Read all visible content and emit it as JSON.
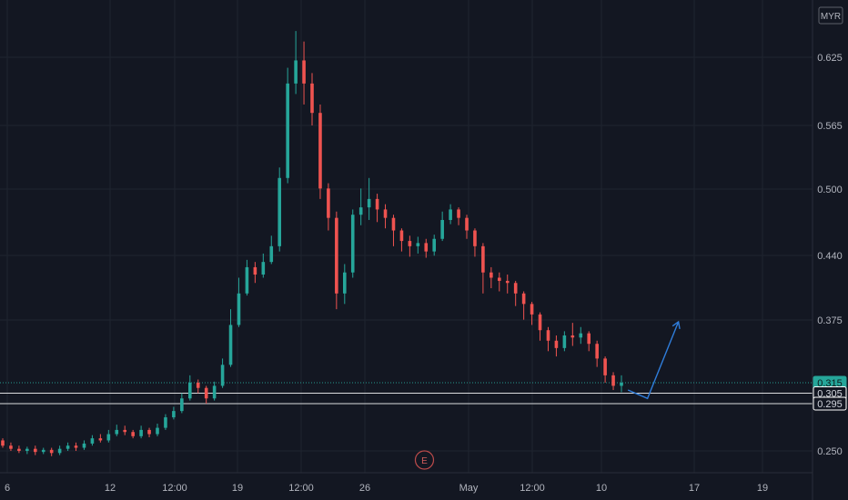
{
  "chart_data": {
    "type": "candlestick",
    "currency": "MYR",
    "x_ticks": [
      "6",
      "12",
      "12:00",
      "19",
      "12:00",
      "26",
      "May",
      "12:00",
      "10",
      "17",
      "19"
    ],
    "y_ticks": [
      "0.625",
      "0.565",
      "0.500",
      "0.440",
      "0.375",
      "0.250"
    ],
    "ylim": [
      0.23,
      0.67
    ],
    "xlim": [
      0,
      100
    ],
    "price_levels": [
      {
        "label": "0.315",
        "value": 0.315,
        "style": "dotted",
        "color": "#26a69a"
      },
      {
        "label": "0.305",
        "value": 0.305,
        "style": "solid",
        "color": "#ffffff"
      },
      {
        "label": "0.295",
        "value": 0.295,
        "style": "solid",
        "color": "#ffffff"
      }
    ],
    "earnings_marker": {
      "label": "E",
      "x": 51.8
    },
    "projection": [
      {
        "x": 76.8,
        "y": 0.308
      },
      {
        "x": 79.2,
        "y": 0.3
      },
      {
        "x": 83.0,
        "y": 0.373
      }
    ],
    "candles": [
      [
        0.0,
        0.26,
        0.255,
        0.262,
        0.253
      ],
      [
        1.0,
        0.255,
        0.252,
        0.258,
        0.25
      ],
      [
        2.0,
        0.252,
        0.25,
        0.255,
        0.248
      ],
      [
        3.0,
        0.25,
        0.252,
        0.254,
        0.247
      ],
      [
        4.0,
        0.252,
        0.249,
        0.255,
        0.246
      ],
      [
        5.0,
        0.249,
        0.251,
        0.253,
        0.247
      ],
      [
        6.0,
        0.251,
        0.248,
        0.253,
        0.245
      ],
      [
        7.0,
        0.248,
        0.252,
        0.255,
        0.246
      ],
      [
        8.0,
        0.252,
        0.255,
        0.258,
        0.25
      ],
      [
        9.0,
        0.255,
        0.253,
        0.258,
        0.25
      ],
      [
        10.0,
        0.253,
        0.257,
        0.26,
        0.251
      ],
      [
        11.0,
        0.257,
        0.262,
        0.265,
        0.255
      ],
      [
        12.0,
        0.262,
        0.26,
        0.266,
        0.258
      ],
      [
        13.0,
        0.26,
        0.266,
        0.27,
        0.258
      ],
      [
        14.0,
        0.266,
        0.27,
        0.275,
        0.264
      ],
      [
        15.0,
        0.27,
        0.268,
        0.274,
        0.265
      ],
      [
        16.0,
        0.268,
        0.264,
        0.27,
        0.262
      ],
      [
        17.0,
        0.264,
        0.27,
        0.274,
        0.262
      ],
      [
        18.0,
        0.27,
        0.266,
        0.272,
        0.263
      ],
      [
        19.0,
        0.266,
        0.272,
        0.276,
        0.264
      ],
      [
        20.0,
        0.272,
        0.282,
        0.285,
        0.27
      ],
      [
        21.0,
        0.282,
        0.288,
        0.292,
        0.28
      ],
      [
        22.0,
        0.288,
        0.3,
        0.305,
        0.286
      ],
      [
        23.0,
        0.3,
        0.315,
        0.322,
        0.298
      ],
      [
        24.0,
        0.315,
        0.31,
        0.318,
        0.305
      ],
      [
        25.0,
        0.31,
        0.3,
        0.312,
        0.295
      ],
      [
        26.0,
        0.3,
        0.312,
        0.316,
        0.298
      ],
      [
        27.0,
        0.312,
        0.332,
        0.338,
        0.31
      ],
      [
        28.0,
        0.332,
        0.37,
        0.385,
        0.33
      ],
      [
        29.0,
        0.37,
        0.4,
        0.415,
        0.368
      ],
      [
        30.0,
        0.4,
        0.425,
        0.432,
        0.398
      ],
      [
        31.0,
        0.425,
        0.418,
        0.43,
        0.41
      ],
      [
        32.0,
        0.418,
        0.43,
        0.438,
        0.415
      ],
      [
        33.0,
        0.43,
        0.445,
        0.455,
        0.428
      ],
      [
        34.0,
        0.445,
        0.51,
        0.52,
        0.44
      ],
      [
        35.0,
        0.51,
        0.6,
        0.615,
        0.505
      ],
      [
        36.0,
        0.6,
        0.622,
        0.65,
        0.59
      ],
      [
        37.0,
        0.622,
        0.6,
        0.64,
        0.58
      ],
      [
        38.0,
        0.6,
        0.572,
        0.61,
        0.56
      ],
      [
        39.0,
        0.572,
        0.5,
        0.58,
        0.49
      ],
      [
        40.0,
        0.5,
        0.472,
        0.505,
        0.46
      ],
      [
        41.0,
        0.472,
        0.4,
        0.478,
        0.385
      ],
      [
        42.0,
        0.4,
        0.42,
        0.428,
        0.39
      ],
      [
        43.0,
        0.42,
        0.475,
        0.48,
        0.415
      ],
      [
        44.0,
        0.475,
        0.482,
        0.5,
        0.465
      ],
      [
        45.0,
        0.482,
        0.49,
        0.51,
        0.47
      ],
      [
        46.0,
        0.49,
        0.48,
        0.495,
        0.468
      ],
      [
        47.0,
        0.48,
        0.472,
        0.485,
        0.462
      ],
      [
        48.0,
        0.472,
        0.46,
        0.475,
        0.445
      ],
      [
        49.0,
        0.46,
        0.45,
        0.462,
        0.44
      ],
      [
        50.0,
        0.45,
        0.445,
        0.455,
        0.435
      ],
      [
        51.0,
        0.445,
        0.448,
        0.454,
        0.438
      ],
      [
        52.0,
        0.448,
        0.44,
        0.452,
        0.434
      ],
      [
        53.0,
        0.44,
        0.452,
        0.456,
        0.436
      ],
      [
        54.0,
        0.452,
        0.47,
        0.478,
        0.45
      ],
      [
        55.0,
        0.47,
        0.48,
        0.485,
        0.466
      ],
      [
        56.0,
        0.48,
        0.472,
        0.482,
        0.465
      ],
      [
        57.0,
        0.472,
        0.46,
        0.475,
        0.452
      ],
      [
        58.0,
        0.46,
        0.445,
        0.462,
        0.435
      ],
      [
        59.0,
        0.445,
        0.42,
        0.448,
        0.4
      ],
      [
        60.0,
        0.42,
        0.415,
        0.425,
        0.405
      ],
      [
        61.0,
        0.415,
        0.412,
        0.42,
        0.402
      ],
      [
        62.0,
        0.412,
        0.41,
        0.418,
        0.4
      ],
      [
        63.0,
        0.41,
        0.4,
        0.412,
        0.388
      ],
      [
        64.0,
        0.4,
        0.39,
        0.402,
        0.375
      ],
      [
        65.0,
        0.39,
        0.38,
        0.392,
        0.37
      ],
      [
        66.0,
        0.38,
        0.365,
        0.382,
        0.355
      ],
      [
        67.0,
        0.365,
        0.355,
        0.368,
        0.345
      ],
      [
        68.0,
        0.355,
        0.348,
        0.36,
        0.34
      ],
      [
        69.0,
        0.348,
        0.36,
        0.364,
        0.345
      ],
      [
        70.0,
        0.36,
        0.358,
        0.372,
        0.35
      ],
      [
        71.0,
        0.358,
        0.362,
        0.368,
        0.352
      ],
      [
        72.0,
        0.362,
        0.352,
        0.364,
        0.345
      ],
      [
        73.0,
        0.352,
        0.338,
        0.355,
        0.33
      ],
      [
        74.0,
        0.338,
        0.322,
        0.34,
        0.315
      ],
      [
        75.0,
        0.322,
        0.312,
        0.325,
        0.308
      ],
      [
        76.0,
        0.312,
        0.315,
        0.322,
        0.306
      ]
    ]
  }
}
